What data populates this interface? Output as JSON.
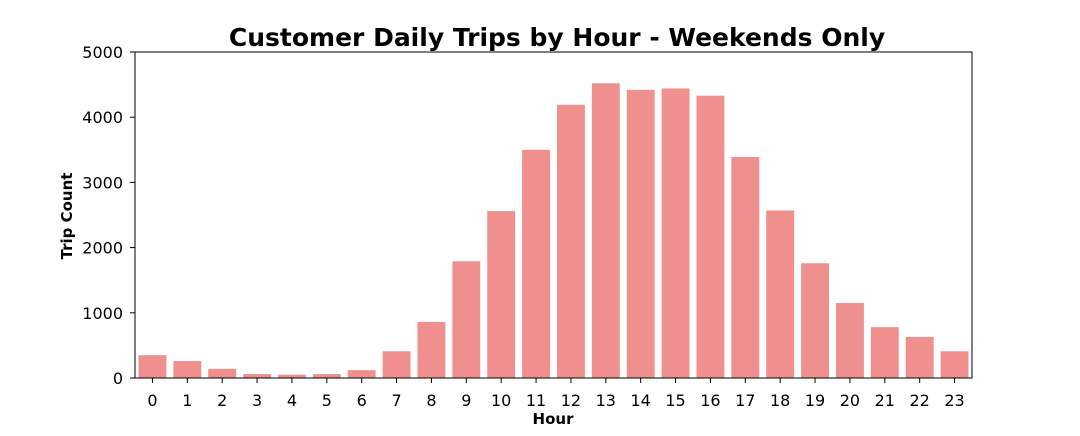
{
  "chart_data": {
    "type": "bar",
    "title": "Customer Daily Trips by Hour - Weekends Only",
    "xlabel": "Hour",
    "ylabel": "Trip Count",
    "categories": [
      "0",
      "1",
      "2",
      "3",
      "4",
      "5",
      "6",
      "7",
      "8",
      "9",
      "10",
      "11",
      "12",
      "13",
      "14",
      "15",
      "16",
      "17",
      "18",
      "19",
      "20",
      "21",
      "22",
      "23"
    ],
    "values": [
      350,
      260,
      140,
      60,
      50,
      60,
      120,
      410,
      860,
      1790,
      2560,
      3500,
      4190,
      4520,
      4420,
      4440,
      4330,
      3390,
      2570,
      1760,
      1150,
      780,
      630,
      410
    ],
    "ylim": [
      0,
      5000
    ],
    "yticks": [
      0,
      1000,
      2000,
      3000,
      4000,
      5000
    ],
    "grid": false,
    "bar_color": "#ef8f8e"
  }
}
